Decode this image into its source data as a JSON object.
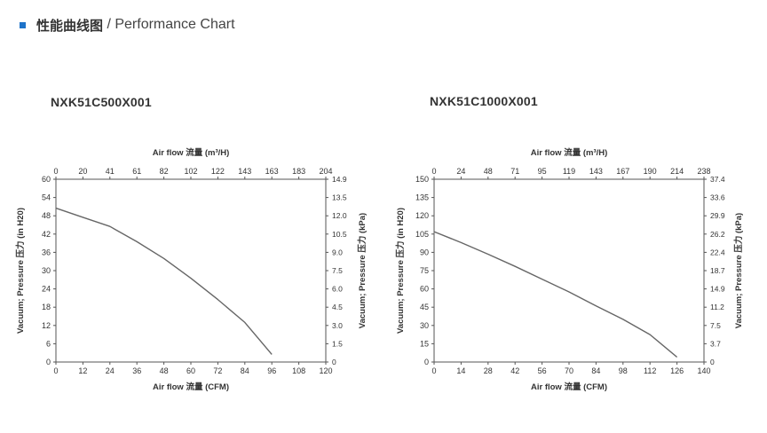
{
  "header": {
    "title_cn": "性能曲线图",
    "title_sep": " / ",
    "title_en": "Performance Chart"
  },
  "colors": {
    "accent": "#1e73c9",
    "curve": "#666666",
    "axis": "#555555"
  },
  "chart_data": [
    {
      "type": "line",
      "title": "NXK51C500X001",
      "xlabel": "Air flow 流量 (CFM)",
      "x2label": "Air flow 流量 (m³/H)",
      "ylabel": "Vacuum; Pressure 压力 (in H20)",
      "y2label": "Vacuum; Pressure 压力 (kPa)",
      "xlim": [
        0,
        120
      ],
      "ylim": [
        0,
        60
      ],
      "x_ticks": [
        "0",
        "12",
        "24",
        "36",
        "48",
        "60",
        "72",
        "84",
        "96",
        "108",
        "120"
      ],
      "x2_ticks": [
        "0",
        "20",
        "41",
        "61",
        "82",
        "102",
        "122",
        "143",
        "163",
        "183",
        "204"
      ],
      "y_ticks": [
        "0",
        "6",
        "12",
        "18",
        "24",
        "30",
        "36",
        "42",
        "48",
        "54",
        "60"
      ],
      "y2_ticks": [
        "0",
        "1.5",
        "3.0",
        "4.5",
        "6.0",
        "7.5",
        "9.0",
        "10.5",
        "12.0",
        "13.5",
        "14.9"
      ],
      "series": [
        {
          "x": [
            0,
            12,
            24,
            36,
            48,
            60,
            72,
            84,
            96
          ],
          "y": [
            50.5,
            47.5,
            44.5,
            39.5,
            34,
            27.5,
            20.5,
            13,
            2.5
          ]
        }
      ]
    },
    {
      "type": "line",
      "title": "NXK51C1000X001",
      "xlabel": "Air flow 流量 (CFM)",
      "x2label": "Air flow 流量 (m³/H)",
      "ylabel": "Vacuum; Pressure 压力 (in H20)",
      "y2label": "Vacuum; Pressure 压力 (kPa)",
      "xlim": [
        0,
        140
      ],
      "ylim": [
        0,
        150
      ],
      "x_ticks": [
        "0",
        "14",
        "28",
        "42",
        "56",
        "70",
        "84",
        "98",
        "112",
        "126",
        "140"
      ],
      "x2_ticks": [
        "0",
        "24",
        "48",
        "71",
        "95",
        "119",
        "143",
        "167",
        "190",
        "214",
        "238"
      ],
      "y_ticks": [
        "0",
        "15",
        "30",
        "45",
        "60",
        "75",
        "90",
        "105",
        "120",
        "135",
        "150"
      ],
      "y2_ticks": [
        "0",
        "3.7",
        "7.5",
        "11.2",
        "14.9",
        "18.7",
        "22.4",
        "26.2",
        "29.9",
        "33.6",
        "37.4"
      ],
      "series": [
        {
          "x": [
            0,
            14,
            28,
            42,
            56,
            70,
            84,
            98,
            112,
            126
          ],
          "y": [
            107,
            98,
            88.5,
            78.5,
            68,
            57.5,
            46,
            35,
            22.5,
            4
          ]
        }
      ]
    }
  ]
}
